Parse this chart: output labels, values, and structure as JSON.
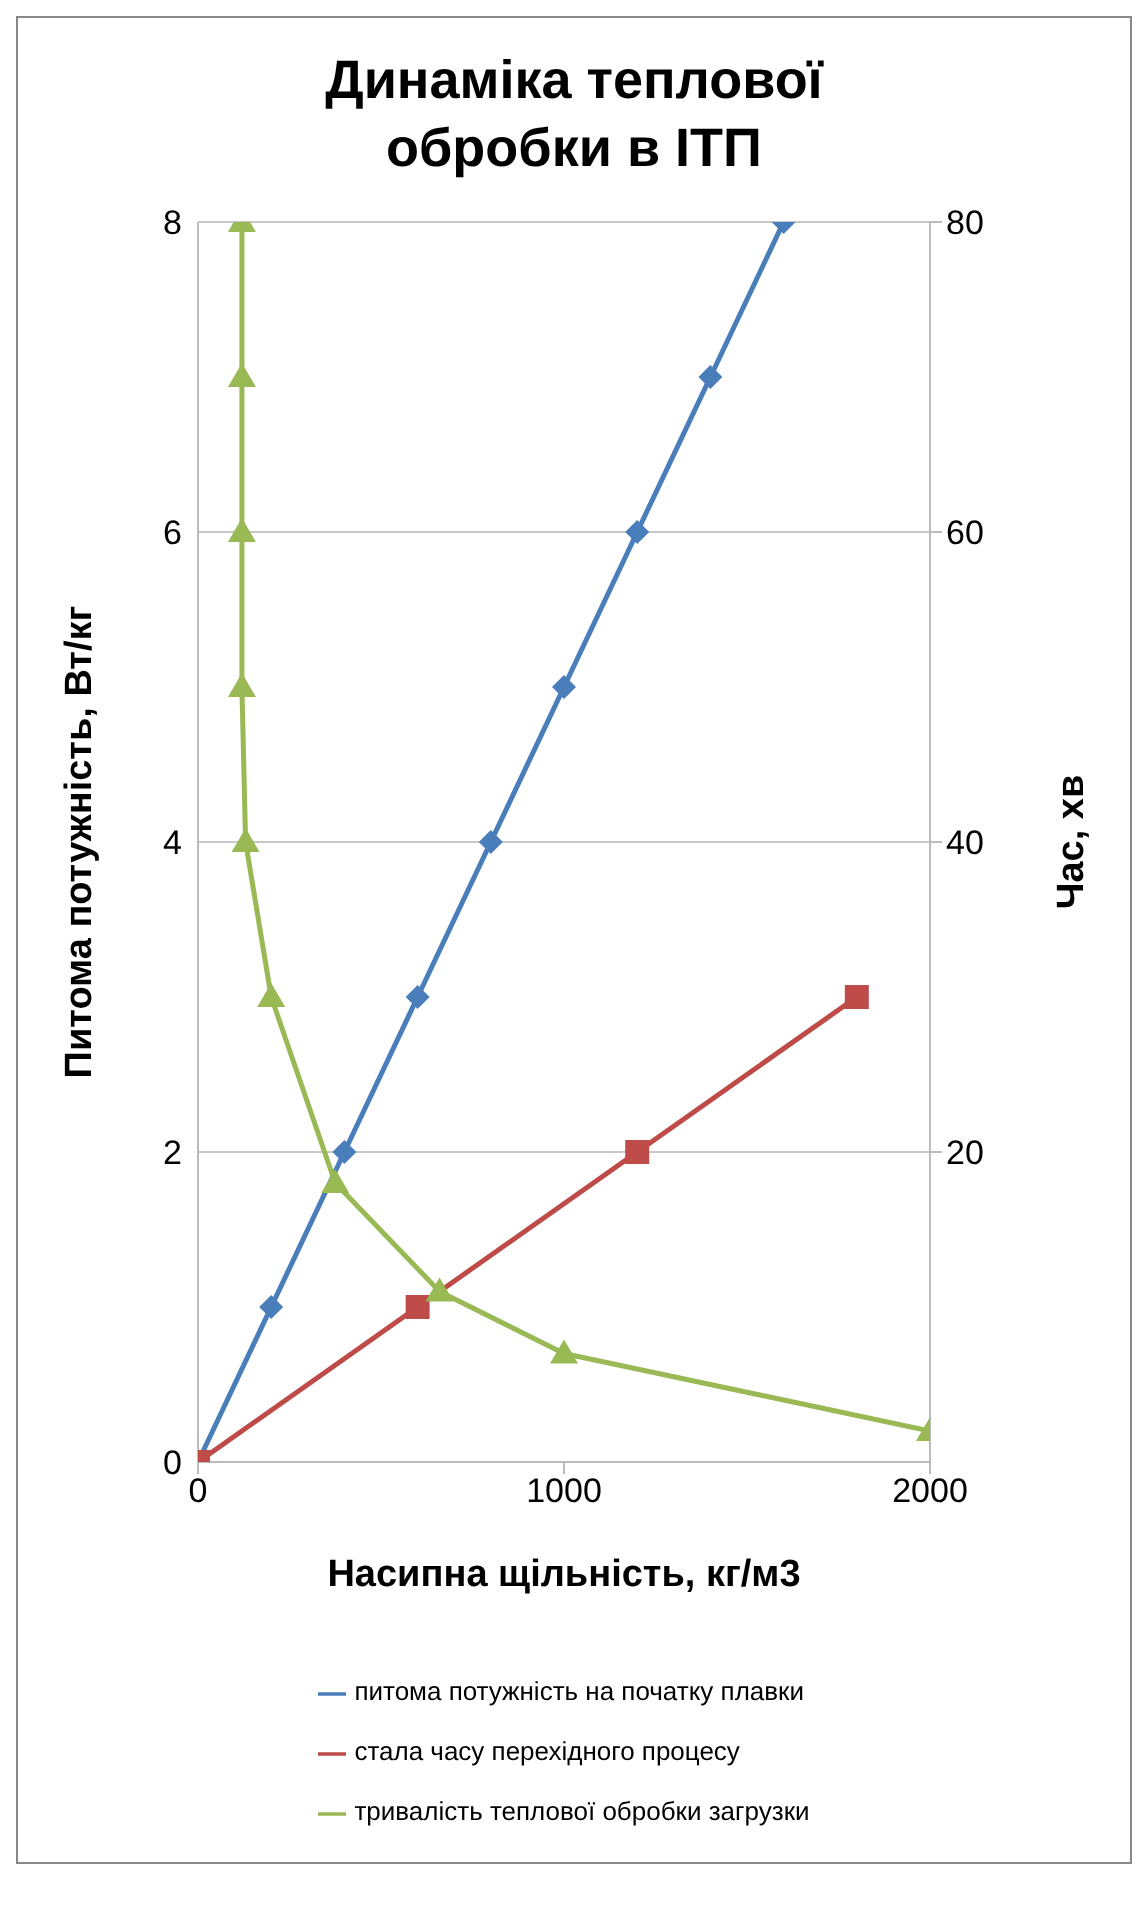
{
  "chart_data": {
    "type": "line",
    "title": "Динаміка теплової обробки в ІТП",
    "xlabel": "Насипна щільність, кг/м3",
    "ylabel": "Питома потужність, Вт/кг",
    "y2label": "Час, хв",
    "xlim": [
      0,
      2000
    ],
    "xticks": [
      0,
      1000,
      2000
    ],
    "ylim": [
      0,
      8
    ],
    "yticks": [
      0,
      2,
      4,
      6,
      8
    ],
    "y2lim": [
      0,
      80
    ],
    "y2ticks": [
      20,
      40,
      60,
      80
    ],
    "grid": "y",
    "legend": "bottom",
    "series": [
      {
        "name": "питома потужність на початку плавки",
        "color": "#4a7ebb",
        "marker": "diamond",
        "x": [
          0,
          200,
          400,
          600,
          800,
          1000,
          1200,
          1400,
          1600
        ],
        "values": [
          0,
          1,
          2,
          3,
          4,
          5,
          6,
          7,
          8
        ]
      },
      {
        "name": "стала часу перехідного процесу",
        "color": "#be4b48",
        "marker": "square",
        "x": [
          0,
          600,
          1200,
          1800
        ],
        "values": [
          0,
          1,
          2,
          3
        ]
      },
      {
        "name": "тривалість теплової обробки загрузки",
        "color": "#98b954",
        "marker": "triangle",
        "axis": "y2",
        "x": [
          120,
          120,
          120,
          120,
          130,
          200,
          375,
          660,
          1000,
          2000
        ],
        "values": [
          80,
          70,
          60,
          50,
          40,
          30,
          18,
          11,
          7,
          2
        ]
      }
    ]
  }
}
